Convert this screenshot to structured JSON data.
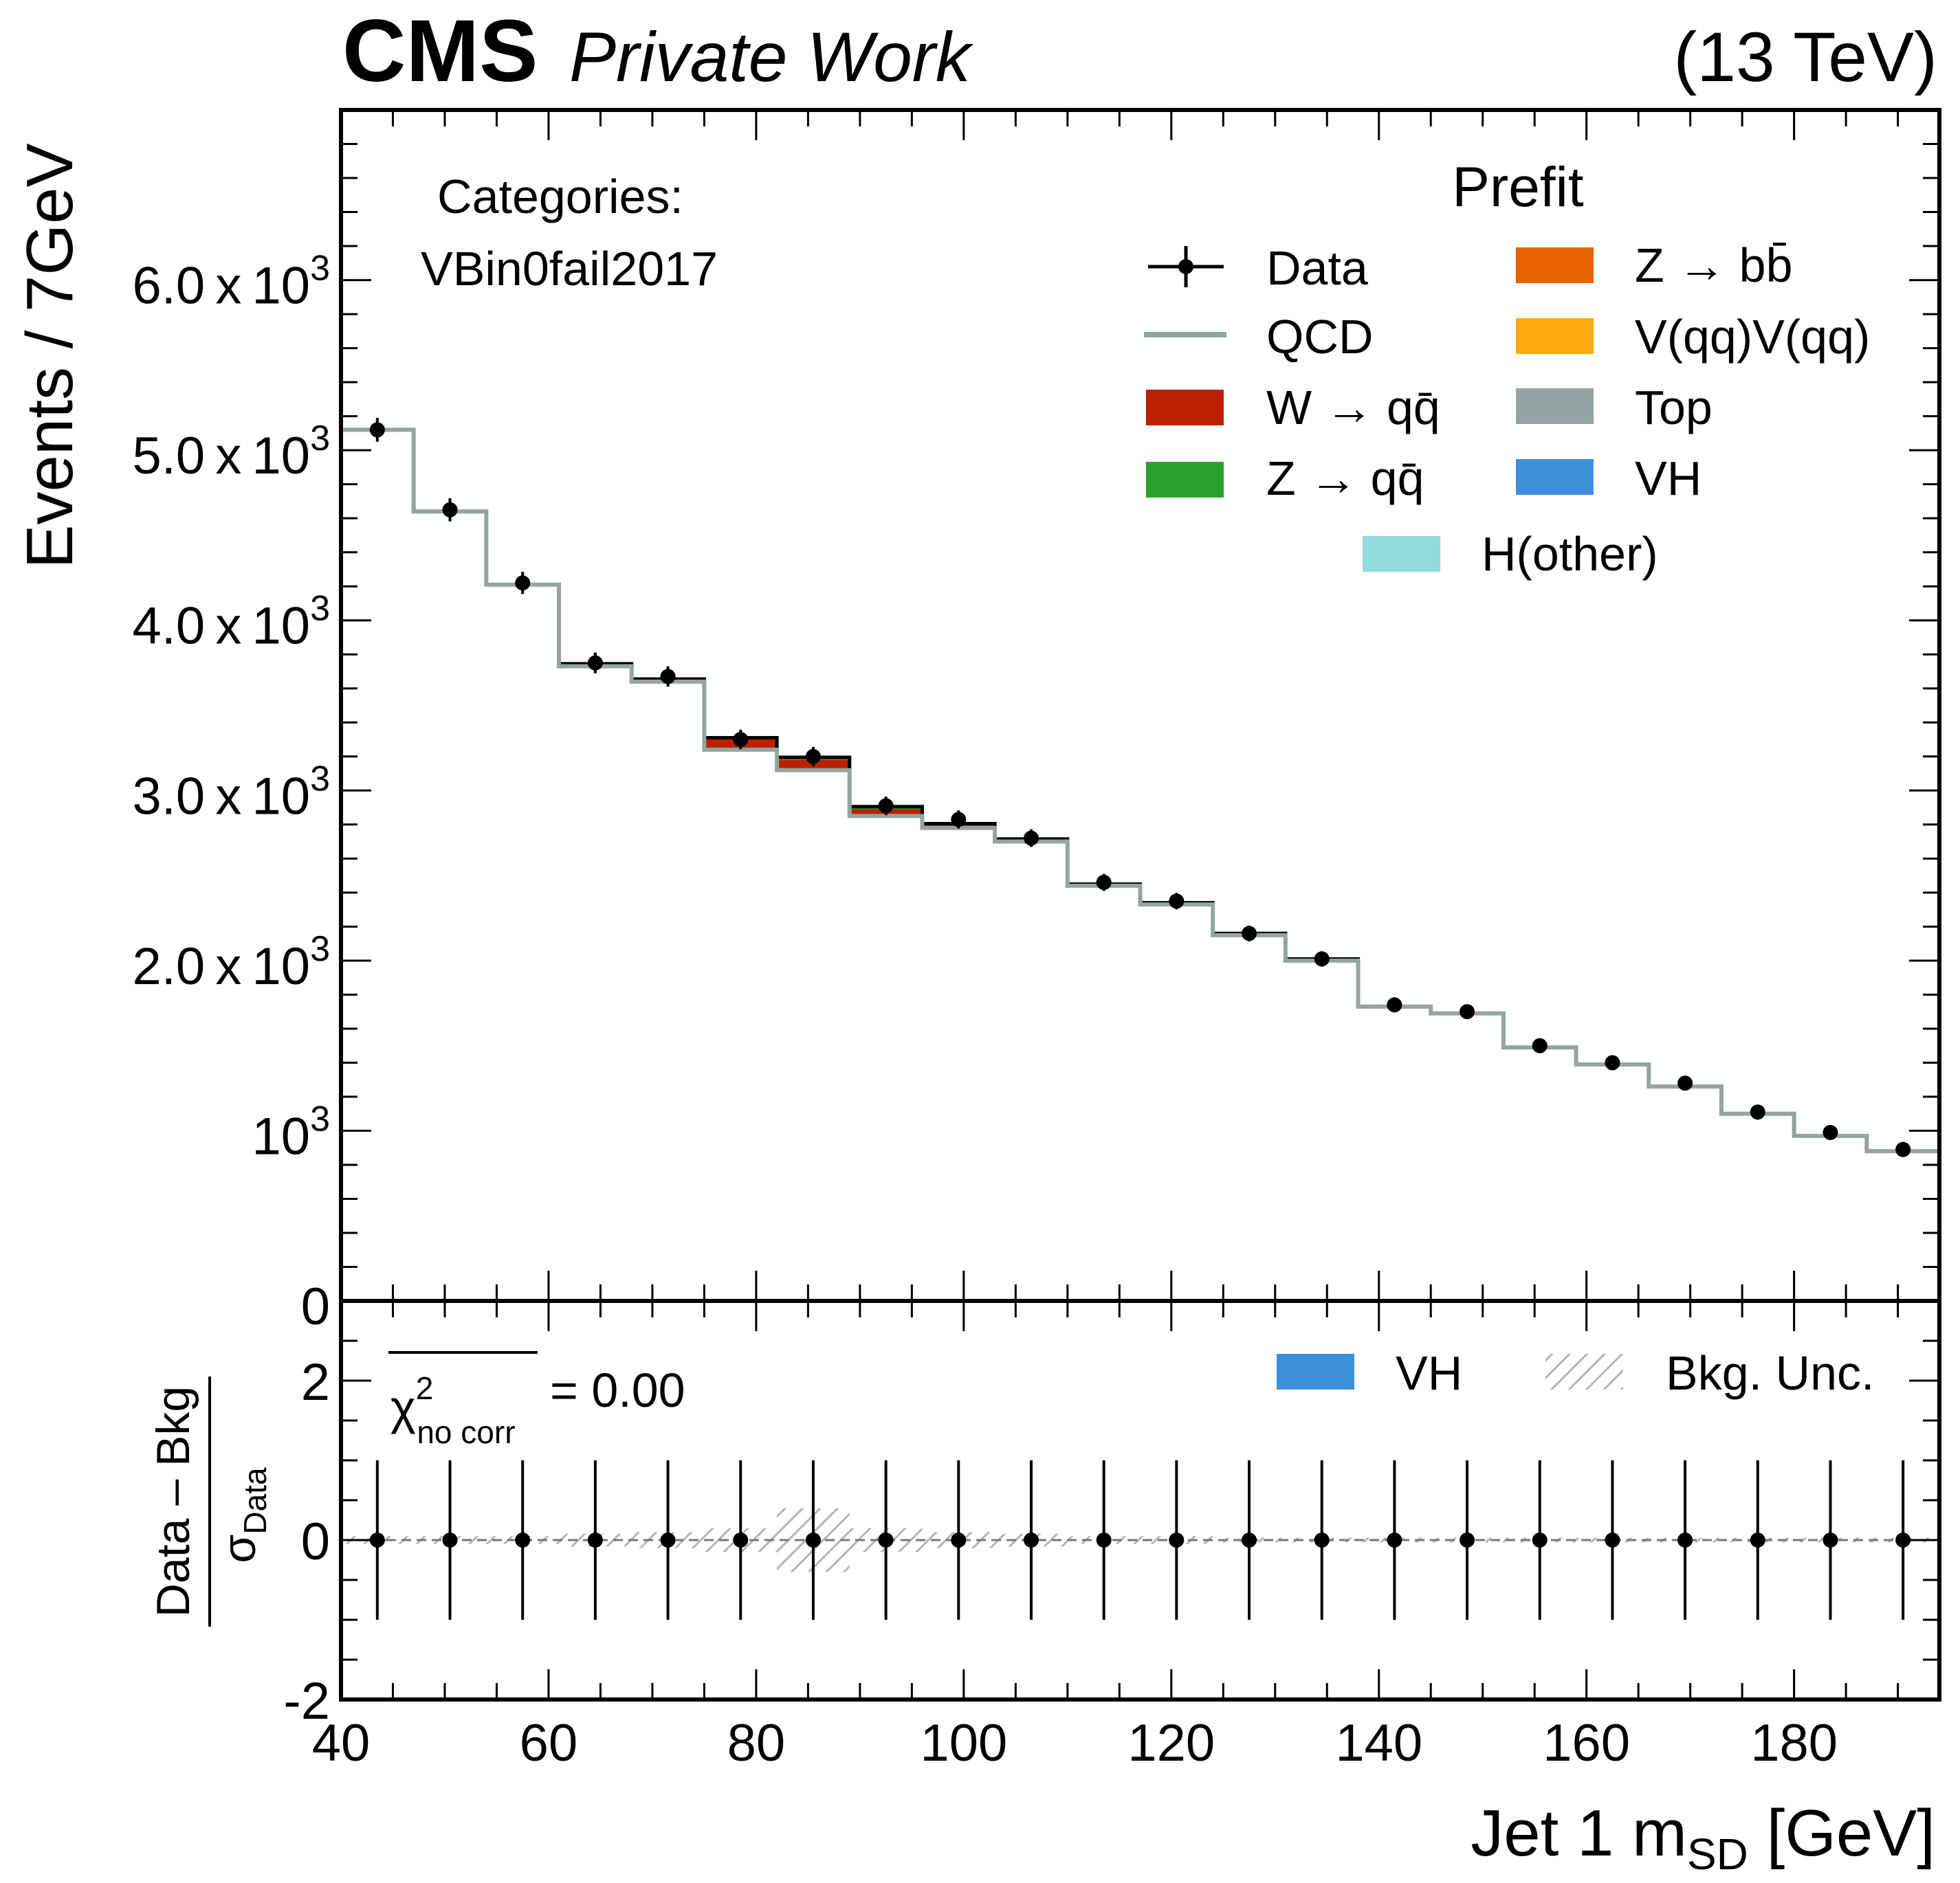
{
  "header": {
    "experiment": "CMS",
    "label": "Private Work",
    "energy": "(13 TeV)"
  },
  "category": {
    "title": "Categories:",
    "name": "VBin0fail2017"
  },
  "legend": {
    "title": "Prefit",
    "entries": [
      {
        "key": "data",
        "label": "Data",
        "color": "#000000"
      },
      {
        "key": "qcd",
        "label": "QCD",
        "color": "#94a4a2"
      },
      {
        "key": "wqq",
        "label": "W → qq̄",
        "color": "#bd1f01"
      },
      {
        "key": "zqq",
        "label": "Z → qq̄",
        "color": "#2ca02c"
      },
      {
        "key": "zbb",
        "label": "Z → bb̄",
        "color": "#e76300"
      },
      {
        "key": "vv",
        "label": "V(qq)V(qq)",
        "color": "#ffa90e"
      },
      {
        "key": "top",
        "label": "Top",
        "color": "#94a4a2"
      },
      {
        "key": "vh",
        "label": "VH",
        "color": "#3f90da"
      },
      {
        "key": "hother",
        "label": "H(other)",
        "color": "#92dadd"
      }
    ]
  },
  "ratio_legend": {
    "vh_label": "VH",
    "vh_color": "#3f90da",
    "unc_label": "Bkg. Unc."
  },
  "chi2": {
    "symbol": "χ",
    "sup": "2",
    "sub": "no corr",
    "value_text": "= 0.00"
  },
  "axes": {
    "ylabel": "Events / 7GeV",
    "ratio_ylabel_num": "Data – Bkg",
    "ratio_ylabel_den_main": "σ",
    "ratio_ylabel_den_sub": "Data",
    "xlabel_main": "Jet 1 m",
    "xlabel_sub": "SD",
    "xlabel_unit": " [GeV]"
  },
  "chart_data": {
    "type": "bar",
    "x_edges": [
      40,
      47,
      54,
      61,
      68,
      75,
      82,
      89,
      96,
      103,
      110,
      117,
      124,
      131,
      138,
      145,
      152,
      159,
      166,
      173,
      180,
      187,
      194
    ],
    "xlim": [
      40,
      194
    ],
    "ylim": [
      0,
      7000
    ],
    "ratio_ylim": [
      -2,
      3
    ],
    "x_ticks": [
      40,
      60,
      80,
      100,
      120,
      140,
      160,
      180
    ],
    "y_ticks": [
      {
        "value": 0,
        "label": "0"
      },
      {
        "value": 1000,
        "mant": "",
        "exp": "3"
      },
      {
        "value": 2000,
        "mant": "2.0",
        "exp": "3"
      },
      {
        "value": 3000,
        "mant": "3.0",
        "exp": "3"
      },
      {
        "value": 4000,
        "mant": "4.0",
        "exp": "3"
      },
      {
        "value": 5000,
        "mant": "5.0",
        "exp": "3"
      },
      {
        "value": 6000,
        "mant": "6.0",
        "exp": "3"
      }
    ],
    "ratio_y_ticks": [
      -2,
      0,
      2
    ],
    "series": [
      {
        "name": "QCD",
        "values": [
          5120,
          4640,
          4210,
          3730,
          3640,
          3240,
          3120,
          2850,
          2780,
          2700,
          2440,
          2330,
          2150,
          2000,
          1730,
          1690,
          1490,
          1390,
          1260,
          1100,
          970,
          880
        ]
      },
      {
        "name": "W → qq̄",
        "values": [
          0,
          0,
          0,
          10,
          10,
          60,
          60,
          40,
          15,
          10,
          5,
          5,
          5,
          5,
          0,
          0,
          0,
          0,
          0,
          0,
          0,
          0
        ]
      },
      {
        "name": "Z → qq̄",
        "values": [
          0,
          0,
          0,
          5,
          5,
          10,
          15,
          15,
          10,
          5,
          5,
          5,
          5,
          5,
          0,
          0,
          0,
          0,
          0,
          0,
          0,
          0
        ]
      }
    ],
    "data_points": [
      {
        "x": 43.5,
        "y": 5120,
        "err": 70
      },
      {
        "x": 50.5,
        "y": 4650,
        "err": 68
      },
      {
        "x": 57.5,
        "y": 4220,
        "err": 65
      },
      {
        "x": 64.5,
        "y": 3750,
        "err": 61
      },
      {
        "x": 71.5,
        "y": 3670,
        "err": 60
      },
      {
        "x": 78.5,
        "y": 3300,
        "err": 57
      },
      {
        "x": 85.5,
        "y": 3200,
        "err": 56
      },
      {
        "x": 92.5,
        "y": 2910,
        "err": 54
      },
      {
        "x": 99.5,
        "y": 2830,
        "err": 53
      },
      {
        "x": 106.5,
        "y": 2720,
        "err": 52
      },
      {
        "x": 113.5,
        "y": 2460,
        "err": 50
      },
      {
        "x": 120.5,
        "y": 2350,
        "err": 48
      },
      {
        "x": 127.5,
        "y": 2160,
        "err": 46
      },
      {
        "x": 134.5,
        "y": 2010,
        "err": 45
      },
      {
        "x": 141.5,
        "y": 1740,
        "err": 42
      },
      {
        "x": 148.5,
        "y": 1700,
        "err": 41
      },
      {
        "x": 155.5,
        "y": 1500,
        "err": 39
      },
      {
        "x": 162.5,
        "y": 1400,
        "err": 37
      },
      {
        "x": 169.5,
        "y": 1280,
        "err": 36
      },
      {
        "x": 176.5,
        "y": 1110,
        "err": 33
      },
      {
        "x": 183.5,
        "y": 990,
        "err": 31
      },
      {
        "x": 190.5,
        "y": 890,
        "err": 30
      }
    ],
    "ratio_points": [
      {
        "x": 43.5,
        "y": 0
      },
      {
        "x": 50.5,
        "y": 0
      },
      {
        "x": 57.5,
        "y": 0
      },
      {
        "x": 64.5,
        "y": 0
      },
      {
        "x": 71.5,
        "y": 0
      },
      {
        "x": 78.5,
        "y": 0
      },
      {
        "x": 85.5,
        "y": 0
      },
      {
        "x": 92.5,
        "y": 0
      },
      {
        "x": 99.5,
        "y": 0
      },
      {
        "x": 106.5,
        "y": 0
      },
      {
        "x": 113.5,
        "y": 0
      },
      {
        "x": 120.5,
        "y": 0
      },
      {
        "x": 127.5,
        "y": 0
      },
      {
        "x": 134.5,
        "y": 0
      },
      {
        "x": 141.5,
        "y": 0
      },
      {
        "x": 148.5,
        "y": 0
      },
      {
        "x": 155.5,
        "y": 0
      },
      {
        "x": 162.5,
        "y": 0
      },
      {
        "x": 169.5,
        "y": 0
      },
      {
        "x": 176.5,
        "y": 0
      },
      {
        "x": 183.5,
        "y": 0
      },
      {
        "x": 190.5,
        "y": 0
      }
    ],
    "ratio_err": 1,
    "bkg_unc": [
      0.05,
      0.05,
      0.05,
      0.08,
      0.1,
      0.15,
      0.4,
      0.15,
      0.1,
      0.08,
      0.05,
      0.05,
      0.03,
      0.03,
      0.03,
      0.03,
      0.03,
      0.03,
      0.03,
      0.03,
      0.03,
      0.03
    ]
  }
}
